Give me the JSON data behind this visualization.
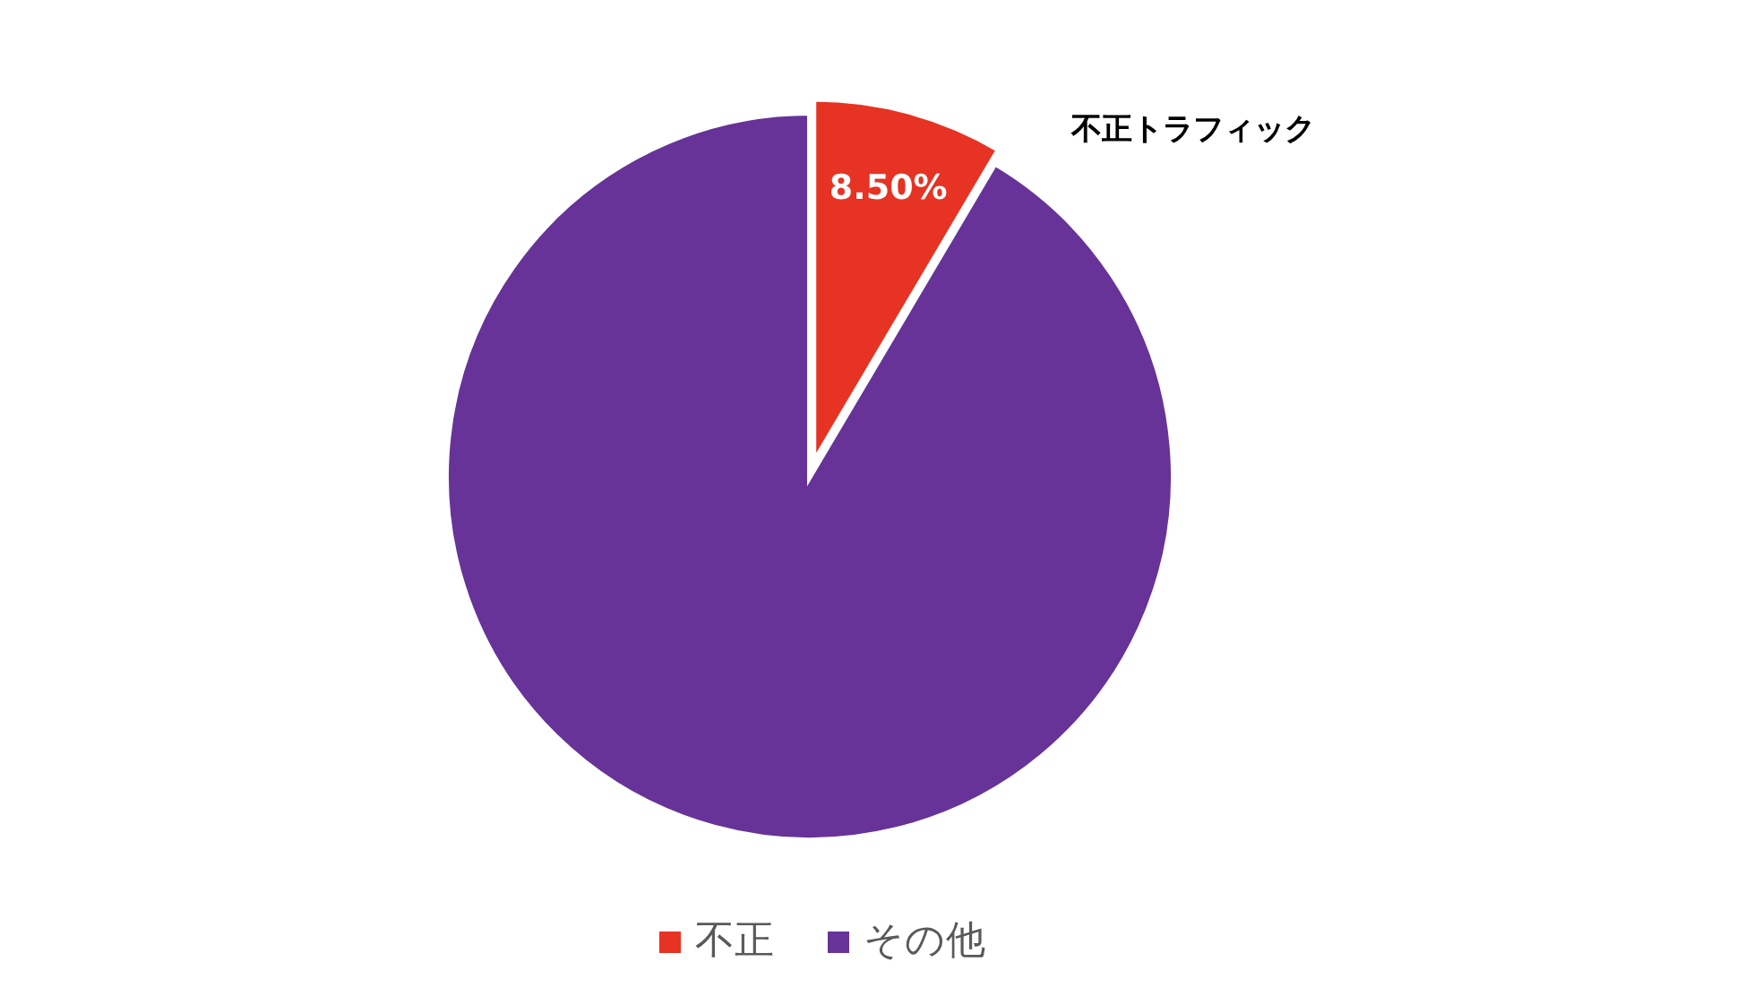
{
  "chart_data": {
    "type": "pie",
    "categories": [
      "不正",
      "その他"
    ],
    "values": [
      8.5,
      91.5
    ],
    "colors": [
      "#e63323",
      "#673398"
    ],
    "value_labels": [
      "8.50%",
      null
    ],
    "annotations": [
      "不正トラフィック"
    ],
    "legend": "bottom"
  }
}
